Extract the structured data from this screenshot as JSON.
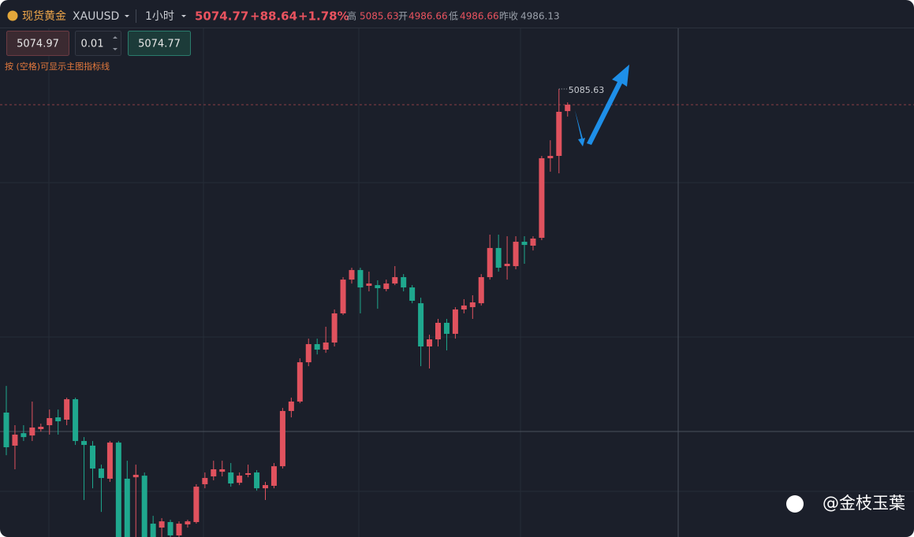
{
  "toolbar": {
    "symbol_name": "现货黄金",
    "symbol": "XAUUSD",
    "interval": "1小时",
    "price": "5074.77",
    "change": "+88.64",
    "change_pct": "+1.78%",
    "high_label": "高",
    "high": "5085.63",
    "open_label": "开",
    "open": "4986.66",
    "low_label": "低",
    "low": "4986.66",
    "prev_close_label": "昨收",
    "prev_close": "4986.13"
  },
  "order": {
    "sell": "5074.97",
    "lots": "0.01",
    "buy": "5074.77"
  },
  "hint": "按 (空格)可显示主图指标线",
  "watermark": "@金枝玉葉",
  "chart_data": {
    "type": "candlestick",
    "up_color": "#e0525e",
    "down_color": "#1fa88e",
    "ylim": [
      4776.7,
      5128.0
    ],
    "price_line": 5074.77,
    "open": [
      4862.5,
      4839.7,
      4848.3,
      4846.7,
      4851.1,
      4853.8,
      4859.2,
      4857.6,
      4871.7,
      4842.9,
      4839.7,
      4823.9,
      4816.9,
      4841.8,
      4816.9,
      4817.9,
      4819.0,
      4785.9,
      4783.2,
      4787.0,
      4777.8,
      4785.4,
      4787.0,
      4813.1,
      4818.5,
      4821.7,
      4821.2,
      4814.1,
      4819.6,
      4821.2,
      4810.3,
      4812.0,
      4825.5,
      4863.6,
      4870.1,
      4897.2,
      4909.7,
      4905.9,
      4910.8,
      4930.9,
      4954.2,
      4960.8,
      4949.9,
      4950.4,
      4947.7,
      4951.5,
      4955.9,
      4948.8,
      4937.9,
      4908.1,
      4913.0,
      4924.4,
      4916.8,
      4933.6,
      4935.2,
      4937.9,
      4955.9,
      4976.0,
      4963.5,
      4963.5,
      4980.3,
      4977.6,
      4983.0,
      5037.9,
      5039.5,
      5070.4
    ],
    "high": [
      4880.9,
      4853.8,
      4853.8,
      4870.1,
      4854.9,
      4864.6,
      4864.6,
      4872.8,
      4872.8,
      4845.6,
      4842.9,
      4826.6,
      4842.9,
      4842.9,
      4829.3,
      4826.6,
      4821.2,
      4791.3,
      4789.7,
      4788.6,
      4787.5,
      4788.6,
      4813.1,
      4821.2,
      4829.3,
      4829.3,
      4827.7,
      4821.2,
      4826.6,
      4822.8,
      4814.7,
      4827.7,
      4865.7,
      4872.8,
      4899.9,
      4913.5,
      4913.5,
      4921.7,
      4933.6,
      4955.9,
      4962.4,
      4962.4,
      4959.7,
      4953.7,
      4954.2,
      4963.5,
      4958.0,
      4950.4,
      4941.7,
      4916.2,
      4927.1,
      4927.1,
      4935.2,
      4940.7,
      4943.4,
      4958.0,
      4985.2,
      4985.2,
      4984.1,
      4984.1,
      4984.1,
      4984.1,
      5039.5,
      5050.3,
      5085.63,
      5076.4
    ],
    "low": [
      4833.1,
      4823.4,
      4842.9,
      4842.9,
      4849.4,
      4847.3,
      4847.3,
      4853.8,
      4840.2,
      4802.2,
      4810.3,
      4794.0,
      4814.7,
      4766.9,
      4766.9,
      4766.9,
      4766.9,
      4766.9,
      4773.4,
      4772.3,
      4772.3,
      4783.2,
      4785.9,
      4810.3,
      4815.8,
      4818.5,
      4811.4,
      4812.5,
      4817.9,
      4808.7,
      4802.2,
      4810.3,
      4823.9,
      4859.2,
      4869.0,
      4894.5,
      4902.6,
      4903.7,
      4908.1,
      4929.8,
      4951.5,
      4930.9,
      4946.1,
      4934.1,
      4946.1,
      4950.4,
      4946.1,
      4937.9,
      4894.5,
      4892.9,
      4908.1,
      4905.4,
      4913.5,
      4930.9,
      4927.1,
      4936.3,
      4954.2,
      4959.7,
      4954.2,
      4961.3,
      4965.1,
      4974.3,
      4981.4,
      5028.6,
      5027.5,
      5066.6
    ],
    "close": [
      4838.6,
      4847.3,
      4845.6,
      4852.2,
      4852.7,
      4858.7,
      4856.5,
      4871.7,
      4842.9,
      4840.2,
      4823.9,
      4817.4,
      4841.8,
      4772.3,
      4773.4,
      4819.6,
      4772.3,
      4772.3,
      4787.5,
      4777.8,
      4785.9,
      4787.5,
      4811.4,
      4817.4,
      4823.4,
      4823.4,
      4813.6,
      4819.0,
      4820.7,
      4810.3,
      4812.5,
      4825.5,
      4863.6,
      4870.1,
      4897.2,
      4909.7,
      4905.9,
      4910.8,
      4930.9,
      4954.2,
      4960.8,
      4948.8,
      4951.5,
      4948.3,
      4951.5,
      4955.9,
      4948.8,
      4939.6,
      4908.1,
      4913.0,
      4924.4,
      4916.8,
      4933.6,
      4936.3,
      4938.5,
      4955.9,
      4976.0,
      4962.4,
      4965.1,
      4980.3,
      4978.1,
      4982.5,
      5037.9,
      5039.5,
      5069.9,
      5074.77
    ]
  }
}
